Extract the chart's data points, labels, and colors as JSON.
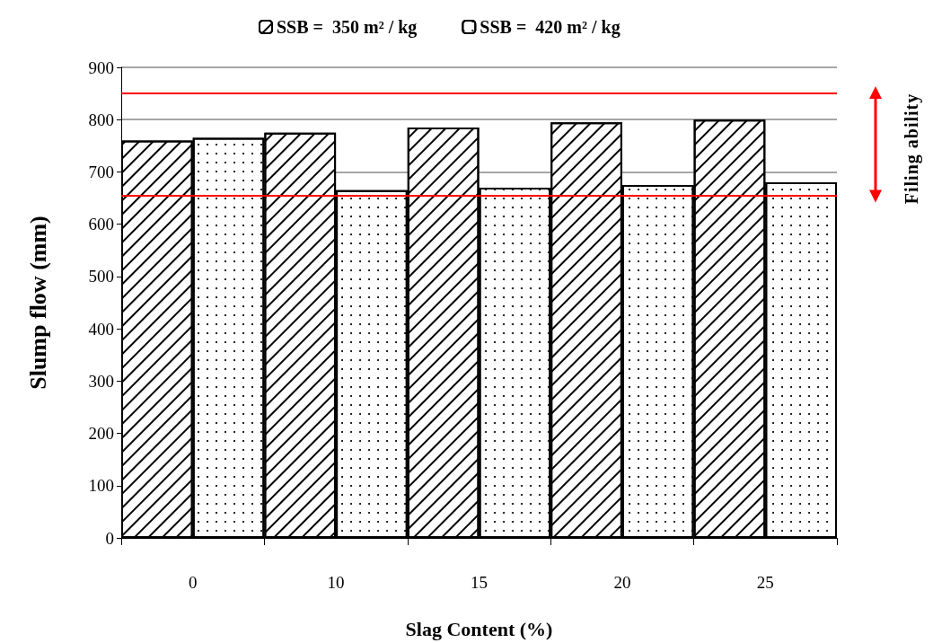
{
  "chart_data": {
    "type": "bar",
    "xlabel": "Slag Content (%)",
    "ylabel": "Slump flow (mm)",
    "categories": [
      "0",
      "10",
      "15",
      "20",
      "25"
    ],
    "series": [
      {
        "name": "SSB =  350 m² / kg",
        "color": "#ffffff",
        "values": [
          760,
          775,
          785,
          795,
          800
        ]
      },
      {
        "name": "SSB =  420 m² / kg",
        "color": "#ffffff",
        "values": [
          765,
          665,
          670,
          675,
          680
        ]
      }
    ],
    "ylim": [
      0,
      900
    ],
    "yticks": [
      0,
      100,
      200,
      300,
      400,
      500,
      600,
      700,
      800,
      900
    ],
    "grid": "y",
    "legend": "top",
    "ref_lines": [
      {
        "axis": "y",
        "value": 850,
        "color": "#ff0000"
      },
      {
        "axis": "y",
        "value": 655,
        "color": "#ff0000"
      }
    ],
    "annotations": [
      "Filing ability"
    ]
  }
}
